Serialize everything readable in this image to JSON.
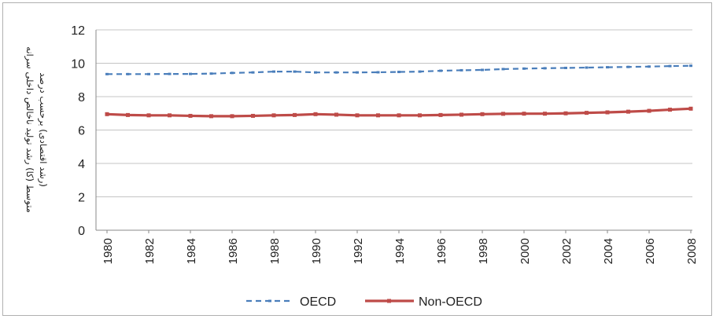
{
  "chart_data": {
    "type": "line",
    "ylabel_lines": [
      "متوسط (کا) رشد تولید ناخالص داخلی سرانه",
      "(رشد اقتصادی) برحسب درصد"
    ],
    "xlabel": "",
    "ylim": [
      0,
      12
    ],
    "y_ticks": [
      0,
      2,
      4,
      6,
      8,
      10,
      12
    ],
    "x_tick_labels": [
      "1980",
      "1982",
      "1984",
      "1986",
      "1988",
      "1990",
      "1992",
      "1994",
      "1996",
      "1998",
      "2000",
      "2002",
      "2004",
      "2006",
      "2008"
    ],
    "x": [
      1980,
      1981,
      1982,
      1983,
      1984,
      1985,
      1986,
      1987,
      1988,
      1989,
      1990,
      1991,
      1992,
      1993,
      1994,
      1995,
      1996,
      1997,
      1998,
      1999,
      2000,
      2001,
      2002,
      2003,
      2004,
      2005,
      2006,
      2007,
      2008
    ],
    "grid": "horizontal",
    "legend_position": "bottom",
    "series": [
      {
        "name": "OECD",
        "color": "#4a7ebb",
        "style": "dashed",
        "values": [
          9.35,
          9.35,
          9.35,
          9.36,
          9.36,
          9.38,
          9.42,
          9.45,
          9.5,
          9.5,
          9.45,
          9.45,
          9.45,
          9.46,
          9.48,
          9.5,
          9.55,
          9.58,
          9.6,
          9.65,
          9.68,
          9.7,
          9.72,
          9.74,
          9.76,
          9.78,
          9.8,
          9.83,
          9.85
        ]
      },
      {
        "name": "Non-OECD",
        "color": "#be4b48",
        "style": "solid",
        "values": [
          6.95,
          6.9,
          6.88,
          6.88,
          6.85,
          6.83,
          6.83,
          6.85,
          6.88,
          6.9,
          6.95,
          6.92,
          6.88,
          6.88,
          6.88,
          6.88,
          6.9,
          6.92,
          6.95,
          6.97,
          6.98,
          6.98,
          7.0,
          7.03,
          7.06,
          7.1,
          7.15,
          7.22,
          7.28
        ]
      }
    ]
  }
}
